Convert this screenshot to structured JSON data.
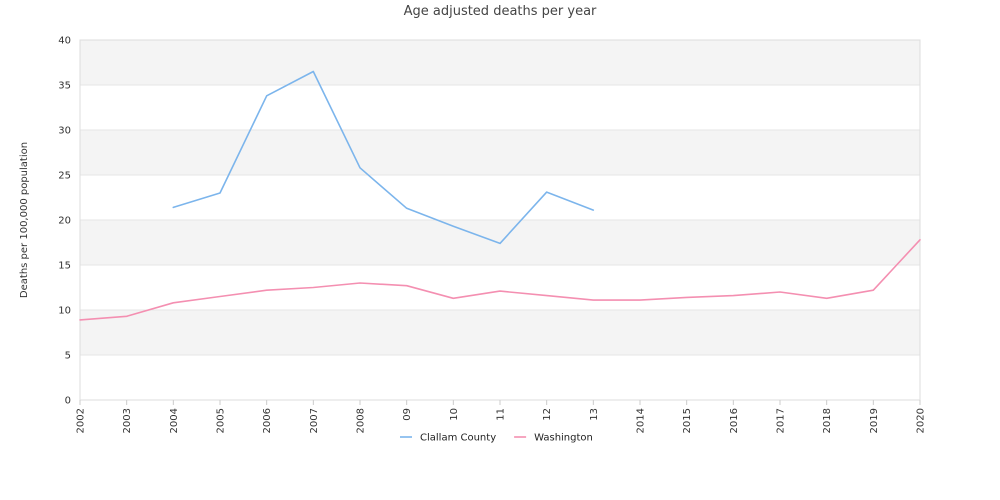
{
  "chart_data": {
    "type": "line",
    "title": "Age adjusted deaths per year",
    "xlabel": "",
    "ylabel": "Deaths per 100,000 population",
    "categories": [
      "2002",
      "2003",
      "2004",
      "2005",
      "2006",
      "2007",
      "2008",
      "09",
      "10",
      "11",
      "12",
      "13",
      "2014",
      "2015",
      "2016",
      "2017",
      "2018",
      "2019",
      "2020"
    ],
    "ylim": [
      0,
      40
    ],
    "yticks": [
      0,
      5,
      10,
      15,
      20,
      25,
      30,
      35,
      40
    ],
    "grid": true,
    "legend": "bottom",
    "series": [
      {
        "name": "Clallam County",
        "color": "#7cb5ec",
        "values": [
          null,
          null,
          21.4,
          23.0,
          33.8,
          36.5,
          25.8,
          21.3,
          19.3,
          17.4,
          23.1,
          21.1,
          null,
          null,
          null,
          null,
          null,
          null,
          null
        ]
      },
      {
        "name": "Washington",
        "color": "#f48fb1",
        "values": [
          8.9,
          9.3,
          10.8,
          11.5,
          12.2,
          12.5,
          13.0,
          12.7,
          11.3,
          12.1,
          11.6,
          11.1,
          11.1,
          11.4,
          11.6,
          12.0,
          11.3,
          12.2,
          17.8
        ]
      }
    ]
  }
}
